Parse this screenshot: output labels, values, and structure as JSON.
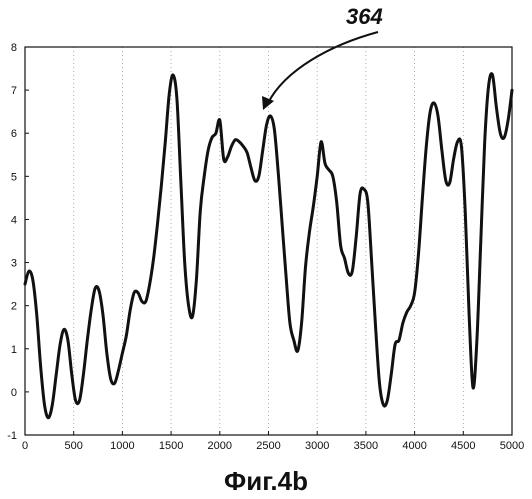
{
  "chart_data": {
    "type": "line",
    "title": "",
    "xlabel": "",
    "ylabel": "",
    "xlim": [
      0,
      5000
    ],
    "ylim": [
      -1,
      8
    ],
    "xticks": [
      "0",
      "500",
      "1000",
      "1500",
      "2000",
      "2500",
      "3000",
      "3500",
      "4000",
      "4500",
      "5000"
    ],
    "yticks": [
      "-1",
      "0",
      "1",
      "2",
      "3",
      "4",
      "5",
      "6",
      "7",
      "8"
    ],
    "grid": "vertical-dotted",
    "series": [
      {
        "x": [
          0,
          40,
          80,
          120,
          160,
          200,
          240,
          280,
          320,
          360,
          400,
          440,
          480,
          520,
          560,
          600,
          640,
          680,
          720,
          760,
          800,
          840,
          880,
          920,
          960,
          1000,
          1040,
          1080,
          1120,
          1160,
          1200,
          1240,
          1280,
          1320,
          1360,
          1400,
          1440,
          1480,
          1520,
          1560,
          1600,
          1640,
          1680,
          1720,
          1760,
          1800,
          1840,
          1880,
          1920,
          1960,
          2000,
          2040,
          2080,
          2120,
          2160,
          2200,
          2240,
          2280,
          2320,
          2360,
          2400,
          2440,
          2480,
          2520,
          2560,
          2600,
          2640,
          2680,
          2720,
          2760,
          2800,
          2840,
          2880,
          2920,
          2960,
          3000,
          3040,
          3080,
          3120,
          3160,
          3200,
          3240,
          3280,
          3320,
          3360,
          3400,
          3440,
          3480,
          3520,
          3560,
          3600,
          3640,
          3680,
          3720,
          3760,
          3800,
          3840,
          3880,
          3920,
          3960,
          4000,
          4040,
          4080,
          4120,
          4160,
          4200,
          4240,
          4280,
          4320,
          4360,
          4400,
          4440,
          4480,
          4520,
          4560,
          4600,
          4640,
          4680,
          4720,
          4760,
          4800,
          4840,
          4880,
          4920,
          4960,
          5000
        ],
        "values": [
          2.5,
          2.8,
          2.6,
          1.8,
          0.6,
          -0.3,
          -0.6,
          -0.3,
          0.4,
          1.1,
          1.45,
          1.2,
          0.4,
          -0.2,
          -0.2,
          0.4,
          1.2,
          1.9,
          2.4,
          2.35,
          1.8,
          0.9,
          0.3,
          0.2,
          0.5,
          0.9,
          1.3,
          1.9,
          2.3,
          2.3,
          2.1,
          2.1,
          2.5,
          3.1,
          3.9,
          4.8,
          5.8,
          6.9,
          7.35,
          6.8,
          4.9,
          3.0,
          2.0,
          1.75,
          2.6,
          4.2,
          5.0,
          5.6,
          5.9,
          6.0,
          6.3,
          5.4,
          5.45,
          5.7,
          5.85,
          5.8,
          5.7,
          5.55,
          5.2,
          4.9,
          5.0,
          5.6,
          6.2,
          6.4,
          6.1,
          5.1,
          3.9,
          2.7,
          1.6,
          1.2,
          0.95,
          1.6,
          2.9,
          3.7,
          4.3,
          5.0,
          5.8,
          5.3,
          5.15,
          5.0,
          4.4,
          3.4,
          3.1,
          2.75,
          2.8,
          3.6,
          4.6,
          4.7,
          4.4,
          3.0,
          1.5,
          0.2,
          -0.3,
          -0.2,
          0.4,
          1.1,
          1.2,
          1.6,
          1.85,
          2.0,
          2.3,
          3.2,
          4.5,
          5.7,
          6.5,
          6.7,
          6.4,
          5.6,
          4.9,
          4.85,
          5.4,
          5.8,
          5.7,
          4.2,
          1.8,
          0.1,
          1.2,
          3.5,
          5.8,
          7.1,
          7.35,
          6.6,
          6.0,
          5.9,
          6.3,
          7.0
        ]
      }
    ],
    "annotations": [
      {
        "text": "364",
        "points_to": {
          "x": 2420,
          "y": 6.35
        }
      }
    ]
  },
  "caption": "Фиг.4b"
}
